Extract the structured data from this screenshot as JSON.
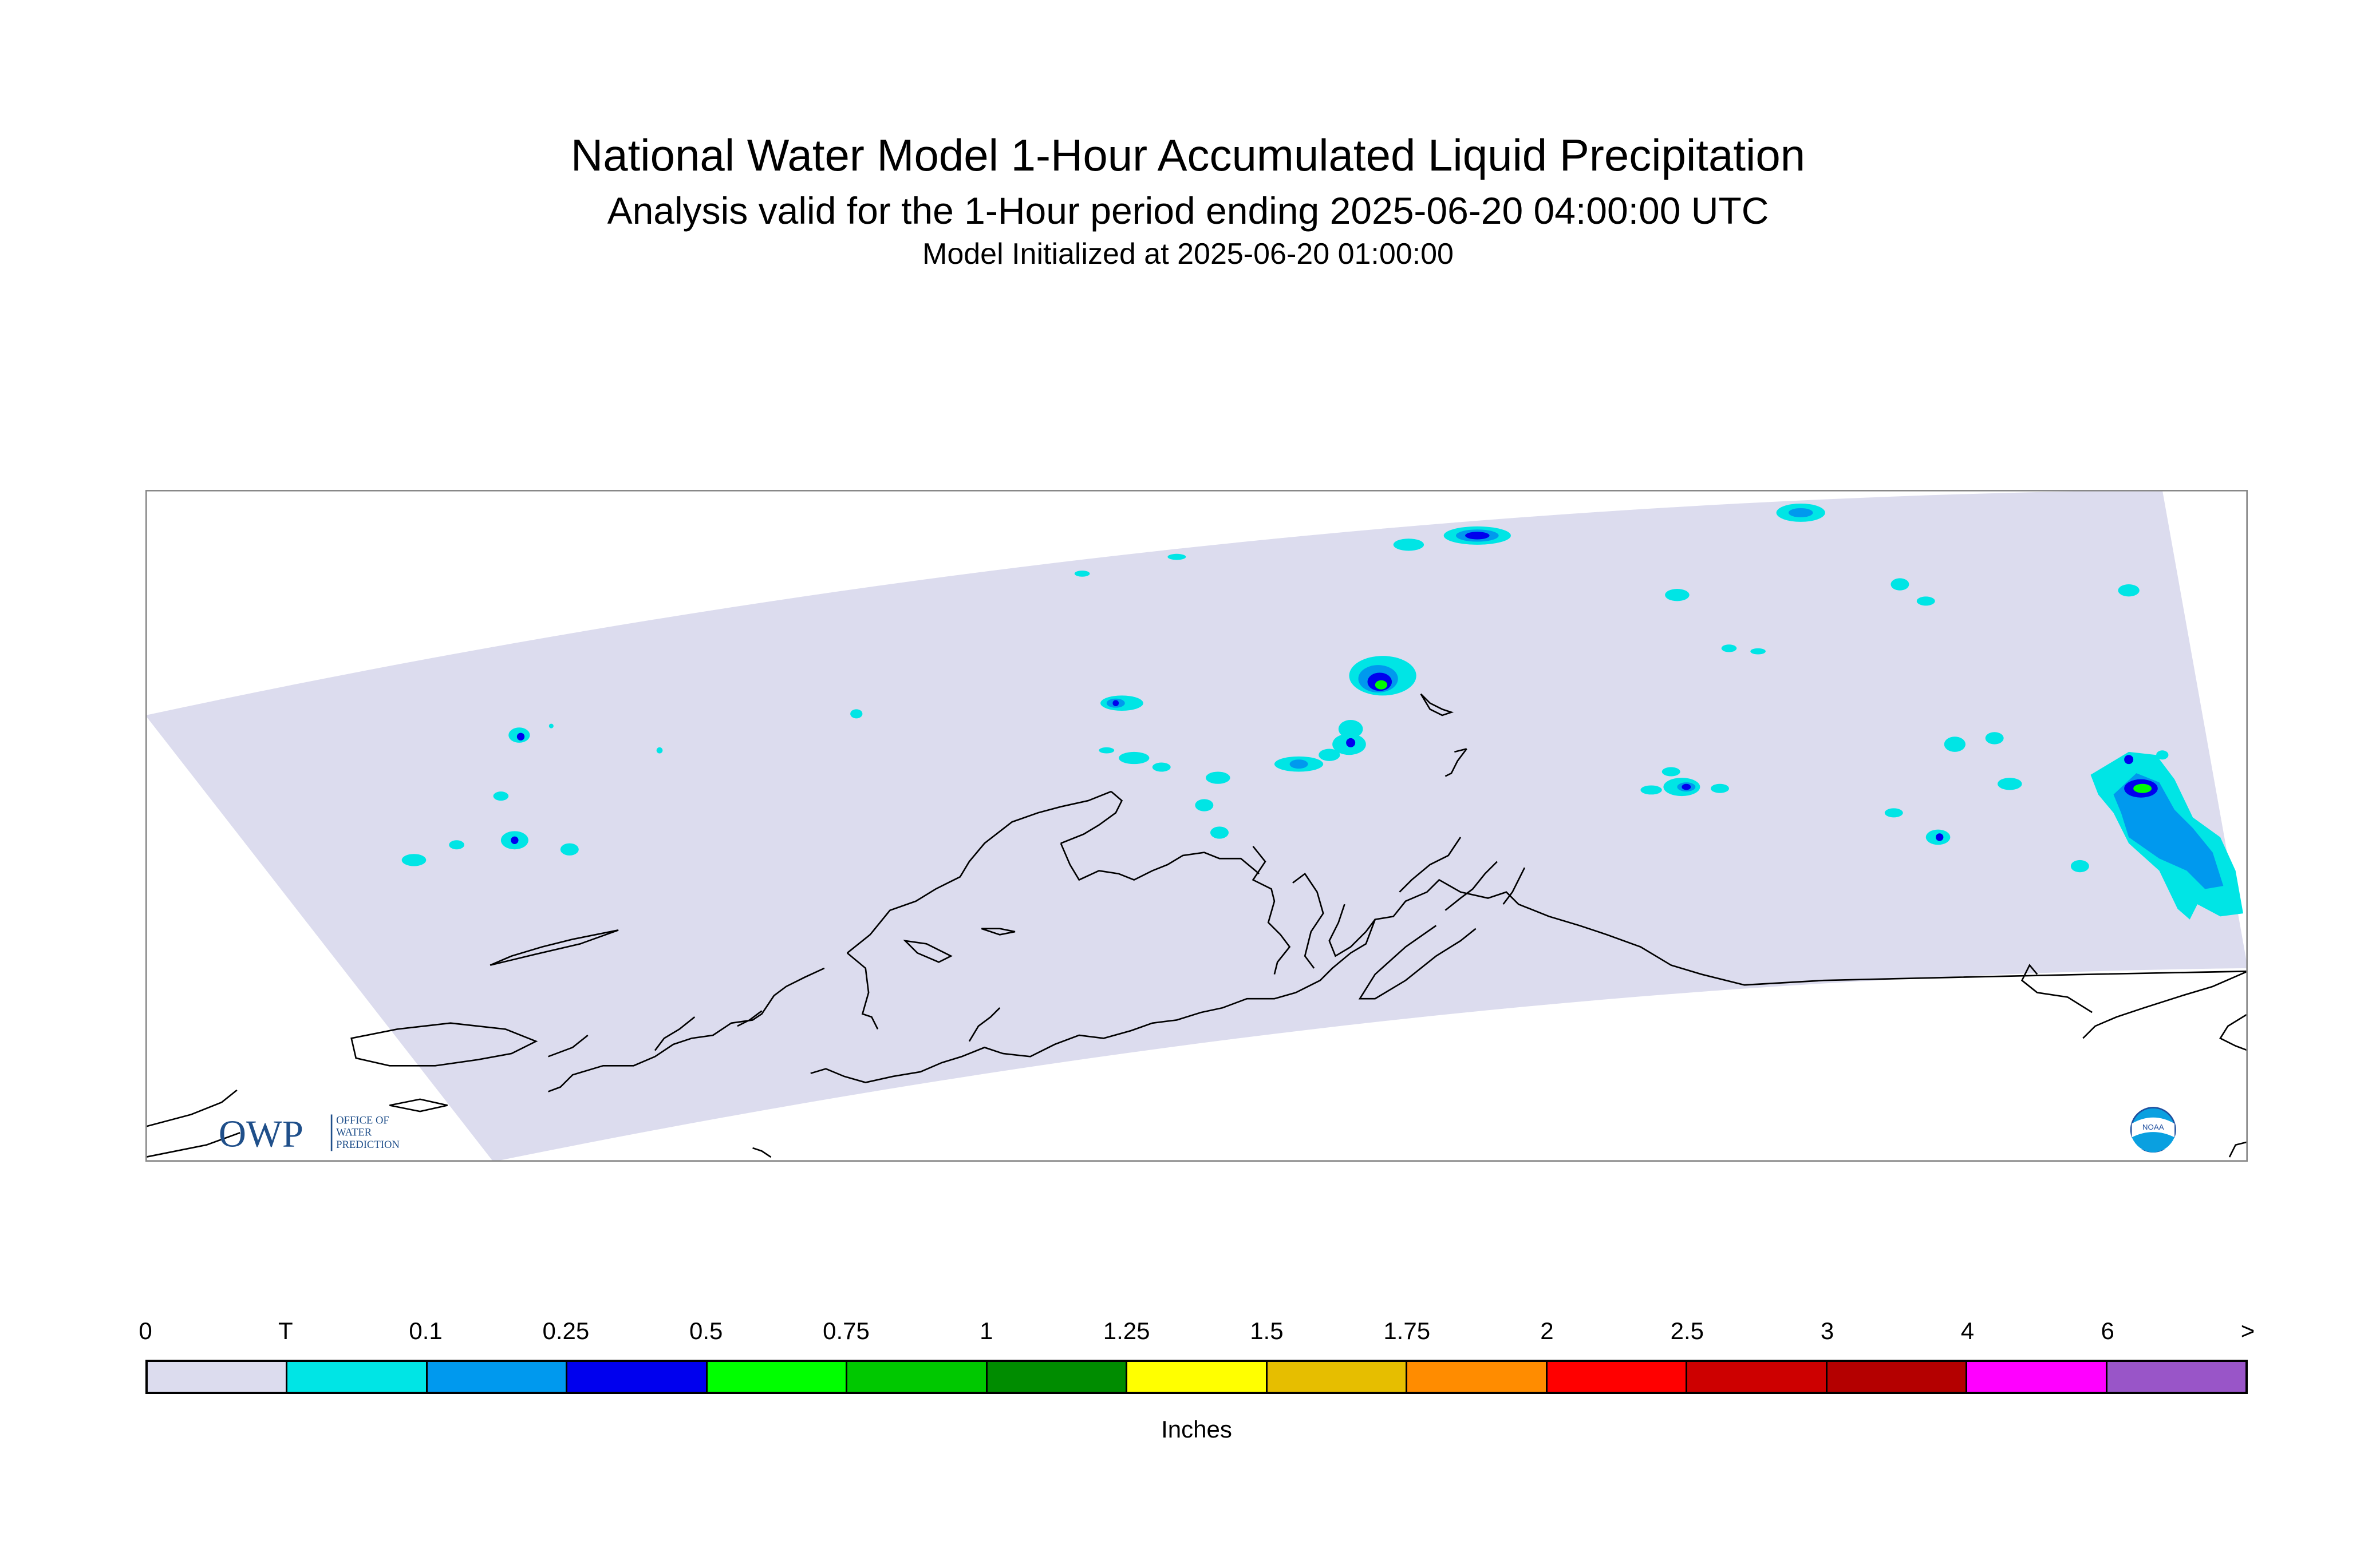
{
  "titles": {
    "main": "National Water Model 1-Hour Accumulated Liquid Precipitation",
    "sub": "Analysis valid for the 1-Hour period ending 2025-06-20 04:00:00 UTC",
    "init": "Model Initialized at 2025-06-20 01:00:00"
  },
  "map": {
    "region": "Alaska",
    "domain_fill_color": "#dcdcee",
    "coastline_color": "#000000",
    "logos": {
      "owp": {
        "mark": "OWP",
        "text": [
          "OFFICE OF",
          "WATER",
          "PREDICTION"
        ]
      },
      "noaa": {
        "mark": "NOAA"
      }
    }
  },
  "legend": {
    "labels": [
      "0",
      "T",
      "0.1",
      "0.25",
      "0.5",
      "0.75",
      "1",
      "1.25",
      "1.5",
      "1.75",
      "2",
      "2.5",
      "3",
      "4",
      "6",
      ">"
    ],
    "colors": [
      "#dcdcee",
      "#00e5e5",
      "#0099ee",
      "#0000ee",
      "#00ff00",
      "#00c800",
      "#008c00",
      "#ffff00",
      "#e6be00",
      "#ff8c00",
      "#ff0000",
      "#cd0000",
      "#b40000",
      "#ff00ff",
      "#9955c8"
    ],
    "units": "Inches"
  }
}
